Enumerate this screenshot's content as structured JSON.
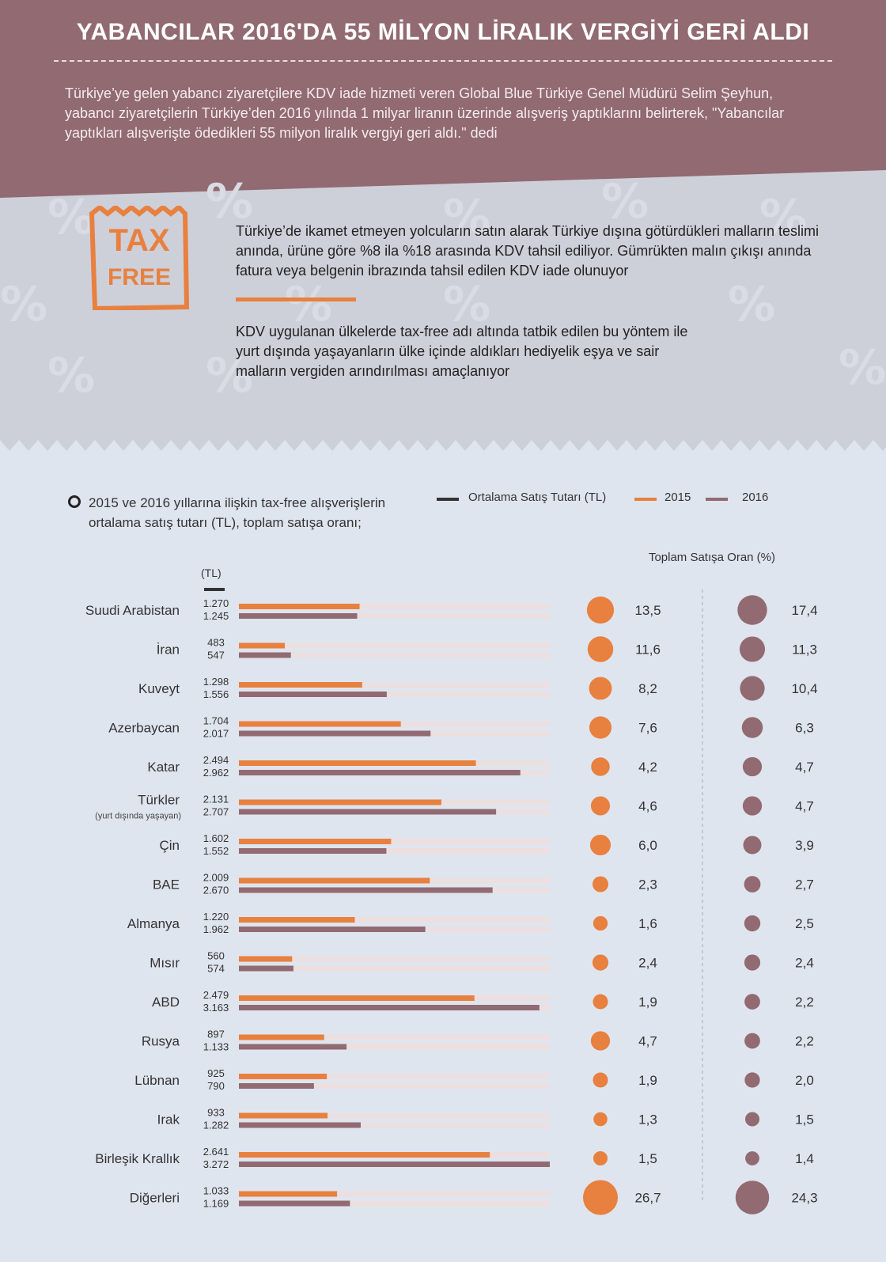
{
  "header": {
    "title": "YABANCILAR 2016'DA 55 MİLYON LİRALIK VERGİYİ GERİ ALDI",
    "text": "Türkiye’ye gelen yabancı ziyaretçilere KDV iade hizmeti veren Global Blue Türkiye Genel Müdürü Selim Şeyhun, yabancı ziyaretçilerin Türkiye’den 2016 yılında 1 milyar liranın üzerinde alışveriş yaptıklarını belirterek, \"Yabancılar yaptıkları alışverişte ödedikleri 55 milyon liralık vergiyi geri aldı.\" dedi"
  },
  "taxfree": {
    "line1": "TAX",
    "line2": "FREE"
  },
  "info": {
    "p1": "Türkiye’de ikamet etmeyen yolcuların satın alarak Türkiye dışına götürdükleri malların teslimi anında, ürüne göre %8 ila %18 arasında KDV tahsil ediliyor. Gümrükten malın çıkışı anında fatura veya belgenin ibrazında tahsil edilen KDV iade olunuyor",
    "p2": "KDV uygulanan ülkelerde tax-free adı altında tatbik edilen bu yöntem ile yurt dışında yaşayanların ülke içinde aldıkları hediyelik eşya ve sair malların vergiden arındırılması amaçlanıyor"
  },
  "chart_data": {
    "type": "bar",
    "title": "2015 ve 2016 yıllarına ilişkin tax-free alışverişlerin ortalama satış tutarı (TL), toplam satışa oranı;",
    "unit_label": "(TL)",
    "ratio_title": "Toplam Satışa Oran (%)",
    "legend": [
      {
        "name": "Ortalama Satış Tutarı (TL)",
        "color": "#333333"
      },
      {
        "name": "2015",
        "color": "#e8803f"
      },
      {
        "name": "2016",
        "color": "#926a72"
      }
    ],
    "xlim": [
      0,
      3272
    ],
    "categories": [
      "Suudi Arabistan",
      "İran",
      "Kuveyt",
      "Azerbaycan",
      "Katar",
      "Türkler",
      "Çin",
      "BAE",
      "Almanya",
      "Mısır",
      "ABD",
      "Rusya",
      "Lübnan",
      "Irak",
      "Birleşik Krallık",
      "Diğerleri"
    ],
    "category_notes": [
      "",
      "",
      "",
      "",
      "",
      "(yurt dışında yaşayan)",
      "",
      "",
      "",
      "",
      "",
      "",
      "",
      "",
      "",
      ""
    ],
    "series": [
      {
        "name": "2015",
        "color": "#e8803f",
        "values": [
          1270,
          483,
          1298,
          1704,
          2494,
          2131,
          1602,
          2009,
          1220,
          560,
          2479,
          897,
          925,
          933,
          2641,
          1033
        ],
        "labels": [
          "1.270",
          "483",
          "1.298",
          "1.704",
          "2.494",
          "2.131",
          "1.602",
          "2.009",
          "1.220",
          "560",
          "2.479",
          "897",
          "925",
          "933",
          "2.641",
          "1.033"
        ],
        "ratio": [
          13.5,
          11.6,
          8.2,
          7.6,
          4.2,
          4.6,
          6.0,
          2.3,
          1.6,
          2.4,
          1.9,
          4.7,
          1.9,
          1.3,
          1.5,
          26.7
        ],
        "ratio_labels": [
          "13,5",
          "11,6",
          "8,2",
          "7,6",
          "4,2",
          "4,6",
          "6,0",
          "2,3",
          "1,6",
          "2,4",
          "1,9",
          "4,7",
          "1,9",
          "1,3",
          "1,5",
          "26,7"
        ]
      },
      {
        "name": "2016",
        "color": "#926a72",
        "values": [
          1245,
          547,
          1556,
          2017,
          2962,
          2707,
          1552,
          2670,
          1962,
          574,
          3163,
          1133,
          790,
          1282,
          3272,
          1169
        ],
        "labels": [
          "1.245",
          "547",
          "1.556",
          "2.017",
          "2.962",
          "2.707",
          "1.552",
          "2.670",
          "1.962",
          "574",
          "3.163",
          "1.133",
          "790",
          "1.282",
          "3.272",
          "1.169"
        ],
        "ratio": [
          17.4,
          11.3,
          10.4,
          6.3,
          4.7,
          4.7,
          3.9,
          2.7,
          2.5,
          2.4,
          2.2,
          2.2,
          2.0,
          1.5,
          1.4,
          24.3
        ],
        "ratio_labels": [
          "17,4",
          "11,3",
          "10,4",
          "6,3",
          "4,7",
          "4,7",
          "3,9",
          "2,7",
          "2,5",
          "2,4",
          "2,2",
          "2,2",
          "2,0",
          "1,5",
          "1,4",
          "24,3"
        ]
      }
    ]
  }
}
